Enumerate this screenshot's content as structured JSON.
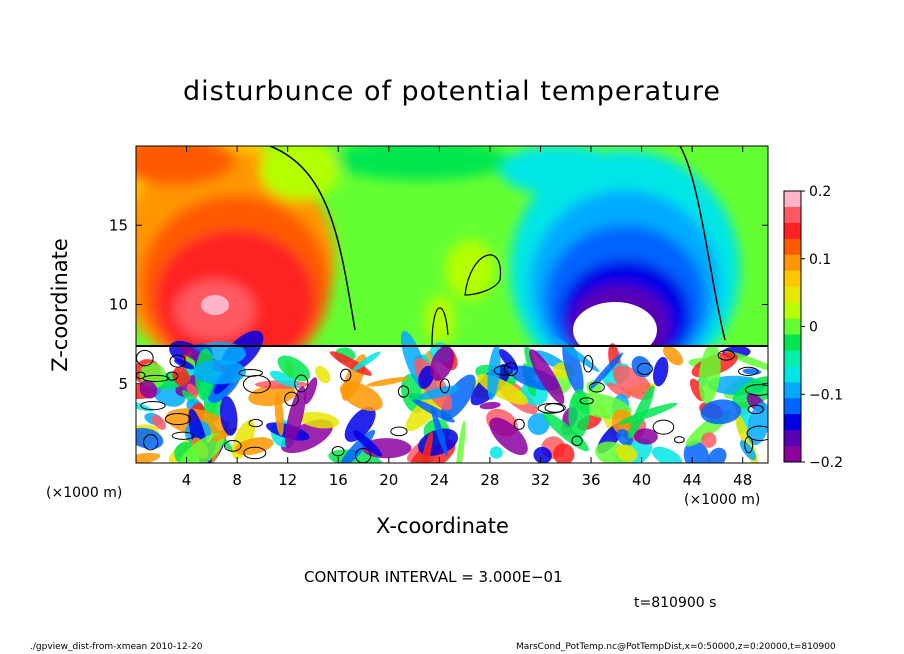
{
  "chart_data": {
    "type": "heatmap",
    "title": "disturbunce of potential temperature",
    "xlabel": "X-coordinate",
    "ylabel": "Z-coordinate",
    "x_unit": "(×1000 m)",
    "x_unit_right": "(×1000 m)",
    "xlim": [
      0,
      50
    ],
    "ylim": [
      0,
      20
    ],
    "x_ticks": [
      "4",
      "8",
      "12",
      "16",
      "20",
      "24",
      "28",
      "32",
      "36",
      "40",
      "44",
      "48"
    ],
    "y_ticks": [
      "5",
      "10",
      "15"
    ],
    "colorbar": {
      "range": [
        -0.2,
        0.2
      ],
      "tick_labels": [
        "0.2",
        "0.1",
        "0",
        "−0.1",
        "−0.2"
      ],
      "colors": [
        "#ffb4c8",
        "#ff5a64",
        "#ff2020",
        "#ff5a00",
        "#ff9600",
        "#ffc800",
        "#e6e600",
        "#b4ff00",
        "#64ff32",
        "#00e650",
        "#00f0aa",
        "#00e6e6",
        "#00aaff",
        "#0064ff",
        "#0000e6",
        "#5a00b4",
        "#8c00a0"
      ]
    },
    "contour_interval_text": "CONTOUR INTERVAL = 3.000E−01",
    "time_text": "t=810900 s"
  },
  "footer": {
    "left": "./gpview_dist-from-xmean  2010-12-20",
    "right": "MarsCond_PotTemp.nc@PotTempDist,x=0:50000,z=0:20000,t=810900"
  }
}
